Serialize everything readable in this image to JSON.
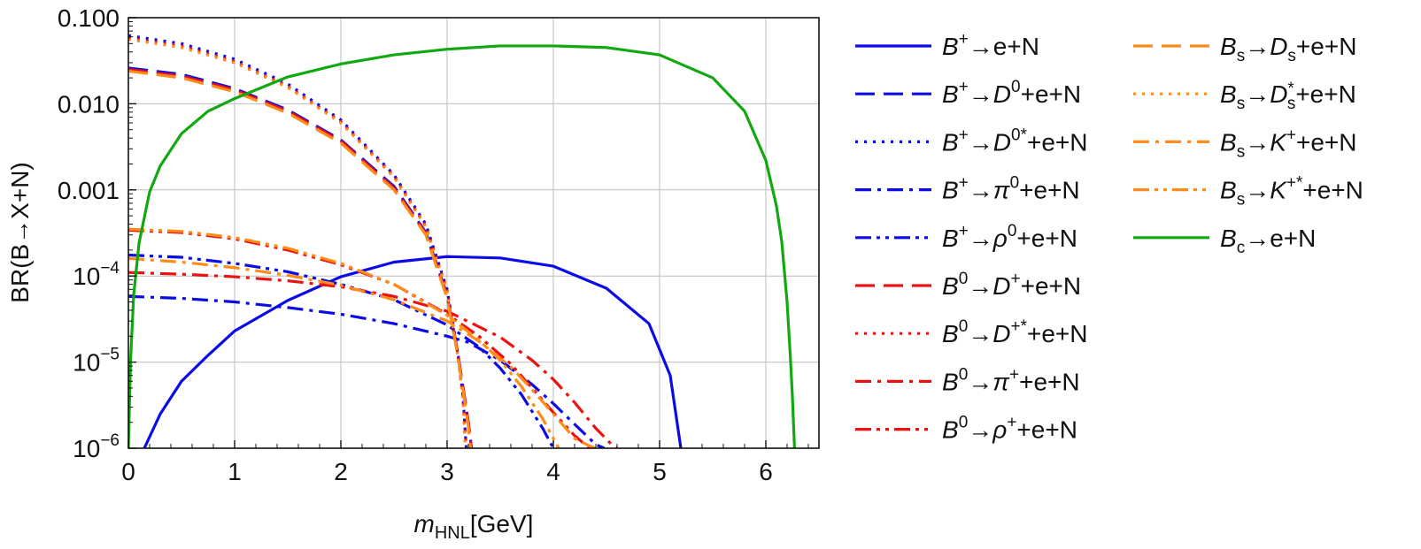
{
  "chart_data": {
    "type": "line",
    "title": "",
    "xlabel": {
      "main": "m",
      "sub": "HNL",
      "unit": "[GeV]"
    },
    "ylabel": "BR(B→X+N)",
    "xlim": [
      0,
      6.5
    ],
    "ylim": [
      1e-06,
      0.1
    ],
    "yscale": "log",
    "grid": true,
    "legend_position": "right",
    "x_ticks": [
      {
        "v": 0,
        "label": "0"
      },
      {
        "v": 1,
        "label": "1"
      },
      {
        "v": 2,
        "label": "2"
      },
      {
        "v": 3,
        "label": "3"
      },
      {
        "v": 4,
        "label": "4"
      },
      {
        "v": 5,
        "label": "5"
      },
      {
        "v": 6,
        "label": "6"
      }
    ],
    "y_ticks": [
      {
        "v": 0.1,
        "base": "0.100",
        "exp": ""
      },
      {
        "v": 0.01,
        "base": "0.010",
        "exp": ""
      },
      {
        "v": 0.001,
        "base": "0.001",
        "exp": ""
      },
      {
        "v": 0.0001,
        "base": "10",
        "exp": "−4"
      },
      {
        "v": 1e-05,
        "base": "10",
        "exp": "−5"
      },
      {
        "v": 1e-06,
        "base": "10",
        "exp": "−6"
      }
    ],
    "series": [
      {
        "name": "B+→e+N",
        "color": "#0b0bea",
        "dash": "solid",
        "parts": [
          [
            "B",
            "i"
          ],
          [
            "+",
            "sup"
          ],
          [
            "→e+N",
            "n"
          ]
        ],
        "x": [
          0.15,
          0.3,
          0.5,
          0.75,
          1.0,
          1.5,
          2.0,
          2.5,
          3.0,
          3.5,
          4.0,
          4.5,
          4.9,
          5.1,
          5.2
        ],
        "y": [
          1e-06,
          2.5e-06,
          6e-06,
          1.2e-05,
          2.3e-05,
          5.2e-05,
          9.8e-05,
          0.000145,
          0.000168,
          0.000162,
          0.00013,
          7.2e-05,
          2.8e-05,
          7e-06,
          1e-06
        ]
      },
      {
        "name": "B+→D0+e+N",
        "color": "#0b0bea",
        "dash": "dash",
        "parts": [
          [
            "B",
            "i"
          ],
          [
            "+",
            "sup"
          ],
          [
            "→",
            "n"
          ],
          [
            "D",
            "i"
          ],
          [
            "0",
            "sup"
          ],
          [
            "+e+N",
            "n"
          ]
        ],
        "x": [
          0,
          0.5,
          1.0,
          1.5,
          2.0,
          2.5,
          2.8,
          3.0,
          3.1,
          3.2,
          3.23
        ],
        "y": [
          0.026,
          0.022,
          0.015,
          0.0085,
          0.0038,
          0.0011,
          0.00032,
          6e-05,
          1.3e-05,
          2e-06,
          1e-06
        ]
      },
      {
        "name": "B+→D0*+e+N",
        "color": "#0b0bea",
        "dash": "dot",
        "parts": [
          [
            "B",
            "i"
          ],
          [
            "+",
            "sup"
          ],
          [
            "→",
            "n"
          ],
          [
            "D",
            "i"
          ],
          [
            "0*",
            "sup"
          ],
          [
            "+e+N",
            "n"
          ]
        ],
        "x": [
          0,
          0.5,
          1.0,
          1.5,
          2.0,
          2.5,
          2.8,
          3.0,
          3.1,
          3.15,
          3.18
        ],
        "y": [
          0.062,
          0.05,
          0.033,
          0.017,
          0.0065,
          0.0015,
          0.0004,
          7e-05,
          1.3e-05,
          4e-06,
          1e-06
        ]
      },
      {
        "name": "B+→π0+e+N",
        "color": "#0b0bea",
        "dash": "dashdot",
        "parts": [
          [
            "B",
            "i"
          ],
          [
            "+",
            "sup"
          ],
          [
            "→",
            "n"
          ],
          [
            "π",
            "i"
          ],
          [
            "0",
            "sup"
          ],
          [
            "+e+N",
            "n"
          ]
        ],
        "x": [
          0,
          0.5,
          1.0,
          1.5,
          2.0,
          2.5,
          3.0,
          3.2,
          3.5,
          3.8,
          4.0,
          4.2,
          4.4,
          4.48
        ],
        "y": [
          5.8e-05,
          5.5e-05,
          5e-05,
          4.3e-05,
          3.6e-05,
          2.8e-05,
          2e-05,
          1.7e-05,
          1.05e-05,
          5.5e-06,
          3.3e-06,
          1.9e-06,
          1.1e-06,
          1e-06
        ]
      },
      {
        "name": "B+→ρ0+e+N",
        "color": "#0b0bea",
        "dash": "dashdotdot",
        "parts": [
          [
            "B",
            "i"
          ],
          [
            "+",
            "sup"
          ],
          [
            "→",
            "n"
          ],
          [
            "ρ",
            "i"
          ],
          [
            "0",
            "sup"
          ],
          [
            "+e+N",
            "n"
          ]
        ],
        "x": [
          0,
          0.5,
          1.0,
          1.5,
          2.0,
          2.5,
          3.0,
          3.3,
          3.5,
          3.7,
          3.9,
          4.0
        ],
        "y": [
          0.000175,
          0.000165,
          0.00014,
          0.000112,
          8e-05,
          5.3e-05,
          2.7e-05,
          1.5e-05,
          8.5e-06,
          4.2e-06,
          1.7e-06,
          1e-06
        ]
      },
      {
        "name": "B0→D+e+N",
        "color": "#ee1111",
        "dash": "dash",
        "parts": [
          [
            "B",
            "i"
          ],
          [
            "0",
            "sup"
          ],
          [
            "→",
            "n"
          ],
          [
            "D",
            "i"
          ],
          [
            "+",
            "sup"
          ],
          [
            "+e+N",
            "n"
          ]
        ],
        "x": [
          0,
          0.5,
          1.0,
          1.5,
          2.0,
          2.5,
          2.8,
          3.0,
          3.1,
          3.2,
          3.23
        ],
        "y": [
          0.025,
          0.021,
          0.0145,
          0.0082,
          0.0037,
          0.00105,
          0.00031,
          5.8e-05,
          1.25e-05,
          2e-06,
          1e-06
        ]
      },
      {
        "name": "B0→D+*+e+N",
        "color": "#ee1111",
        "dash": "dot",
        "parts": [
          [
            "B",
            "i"
          ],
          [
            "0",
            "sup"
          ],
          [
            "→",
            "n"
          ],
          [
            "D",
            "i"
          ],
          [
            "+*",
            "sup"
          ],
          [
            "+e+N",
            "n"
          ]
        ],
        "x": [
          0,
          0.5,
          1.0,
          1.5,
          2.0,
          2.5,
          2.8,
          3.0,
          3.1,
          3.15,
          3.18
        ],
        "y": [
          0.058,
          0.047,
          0.031,
          0.016,
          0.0062,
          0.00145,
          0.00038,
          6.8e-05,
          1.25e-05,
          3.8e-06,
          1e-06
        ]
      },
      {
        "name": "B0→π+e+N",
        "color": "#ee1111",
        "dash": "dashdot",
        "parts": [
          [
            "B",
            "i"
          ],
          [
            "0",
            "sup"
          ],
          [
            "→",
            "n"
          ],
          [
            "π",
            "i"
          ],
          [
            "+",
            "sup"
          ],
          [
            "+e+N",
            "n"
          ]
        ],
        "x": [
          0,
          0.5,
          1.0,
          1.5,
          2.0,
          2.5,
          3.0,
          3.5,
          3.8,
          4.0,
          4.2,
          4.4,
          4.55,
          4.6
        ],
        "y": [
          0.00011,
          0.000105,
          9.8e-05,
          8.8e-05,
          7.5e-05,
          5.8e-05,
          3.9e-05,
          1.95e-05,
          1.05e-05,
          6.3e-06,
          3.4e-06,
          1.7e-06,
          1.1e-06,
          1e-06
        ]
      },
      {
        "name": "B0→ρ+e+N",
        "color": "#ee1111",
        "dash": "dashdotdot",
        "parts": [
          [
            "B",
            "i"
          ],
          [
            "0",
            "sup"
          ],
          [
            "→",
            "n"
          ],
          [
            "ρ",
            "i"
          ],
          [
            "+",
            "sup"
          ],
          [
            "+e+N",
            "n"
          ]
        ],
        "x": [
          0,
          0.5,
          1.0,
          1.5,
          2.0,
          2.5,
          3.0,
          3.3,
          3.6,
          3.8,
          4.0,
          4.2,
          4.3,
          4.35
        ],
        "y": [
          0.00034,
          0.00032,
          0.00027,
          0.0002,
          0.000135,
          8e-05,
          3.6e-05,
          2e-05,
          9.5e-06,
          5e-06,
          2.6e-06,
          1.4e-06,
          1.1e-06,
          1e-06
        ]
      },
      {
        "name": "Bs→Ds+e+N",
        "color": "#ff8c1a",
        "dash": "dash",
        "parts": [
          [
            "B",
            "i"
          ],
          [
            "s",
            "sub"
          ],
          [
            "→",
            "n"
          ],
          [
            "D",
            "i"
          ],
          [
            "s",
            "sub"
          ],
          [
            "+e+N",
            "n"
          ]
        ],
        "x": [
          0,
          0.5,
          1.0,
          1.5,
          2.0,
          2.5,
          2.8,
          3.0,
          3.1,
          3.2,
          3.22
        ],
        "y": [
          0.024,
          0.02,
          0.0138,
          0.0078,
          0.0035,
          0.001,
          0.0003,
          5.5e-05,
          1.2e-05,
          1.8e-06,
          1e-06
        ]
      },
      {
        "name": "Bs→Ds*+e+N",
        "color": "#ff8c1a",
        "dash": "dot",
        "parts": [
          [
            "B",
            "i"
          ],
          [
            "s",
            "sub"
          ],
          [
            "→",
            "n"
          ],
          [
            "D",
            "i"
          ],
          [
            "*",
            "supsub"
          ],
          [
            "+e+N",
            "n"
          ]
        ],
        "x": [
          0,
          0.5,
          1.0,
          1.5,
          2.0,
          2.5,
          2.8,
          3.0,
          3.1,
          3.15,
          3.17
        ],
        "y": [
          0.056,
          0.045,
          0.03,
          0.0155,
          0.006,
          0.0014,
          0.00037,
          6.5e-05,
          1.2e-05,
          3.5e-06,
          1e-06
        ]
      },
      {
        "name": "Bs→K+e+N",
        "color": "#ff8c1a",
        "dash": "dashdot",
        "parts": [
          [
            "B",
            "i"
          ],
          [
            "s",
            "sub"
          ],
          [
            "→",
            "n"
          ],
          [
            "K",
            "i"
          ],
          [
            "+",
            "sup"
          ],
          [
            "+e+N",
            "n"
          ]
        ],
        "x": [
          0,
          0.5,
          1.0,
          1.5,
          2.0,
          2.5,
          3.0,
          3.3,
          3.6,
          3.8,
          4.0,
          4.2,
          4.35,
          4.4
        ],
        "y": [
          0.00016,
          0.000145,
          0.000125,
          0.000102,
          7.8e-05,
          5.3e-05,
          3e-05,
          1.75e-05,
          8.8e-06,
          4.8e-06,
          2.5e-06,
          1.3e-06,
          1.05e-06,
          1e-06
        ]
      },
      {
        "name": "Bs→K+*+e+N",
        "color": "#ff8c1a",
        "dash": "dashdotdot",
        "parts": [
          [
            "B",
            "i"
          ],
          [
            "s",
            "sub"
          ],
          [
            "→",
            "n"
          ],
          [
            "K",
            "i"
          ],
          [
            "+*",
            "sup"
          ],
          [
            "+e+N",
            "n"
          ]
        ],
        "x": [
          0,
          0.5,
          1.0,
          1.5,
          2.0,
          2.5,
          3.0,
          3.3,
          3.5,
          3.7,
          3.9,
          4.0,
          4.05
        ],
        "y": [
          0.00035,
          0.00033,
          0.00028,
          0.00021,
          0.00014,
          8e-05,
          3.5e-05,
          1.8e-05,
          1.05e-05,
          5.2e-06,
          2.2e-06,
          1.3e-06,
          1e-06
        ]
      },
      {
        "name": "Bc→e+N",
        "color": "#11a811",
        "dash": "solid",
        "parts": [
          [
            "B",
            "i"
          ],
          [
            "c",
            "sub"
          ],
          [
            "→e+N",
            "n"
          ]
        ],
        "x": [
          0.0,
          0.02,
          0.05,
          0.1,
          0.2,
          0.3,
          0.5,
          0.75,
          1.0,
          1.5,
          2.0,
          2.5,
          3.0,
          3.5,
          4.0,
          4.5,
          5.0,
          5.5,
          5.8,
          6.0,
          6.1,
          6.15,
          6.2,
          6.23,
          6.25,
          6.26,
          6.27
        ],
        "y": [
          1e-06,
          1e-05,
          6e-05,
          0.00024,
          0.00095,
          0.0019,
          0.0045,
          0.0082,
          0.0115,
          0.0205,
          0.029,
          0.037,
          0.043,
          0.047,
          0.047,
          0.045,
          0.037,
          0.02,
          0.0082,
          0.0022,
          0.00065,
          0.00025,
          5e-05,
          1.2e-05,
          4e-06,
          2e-06,
          1e-06
        ]
      }
    ]
  }
}
